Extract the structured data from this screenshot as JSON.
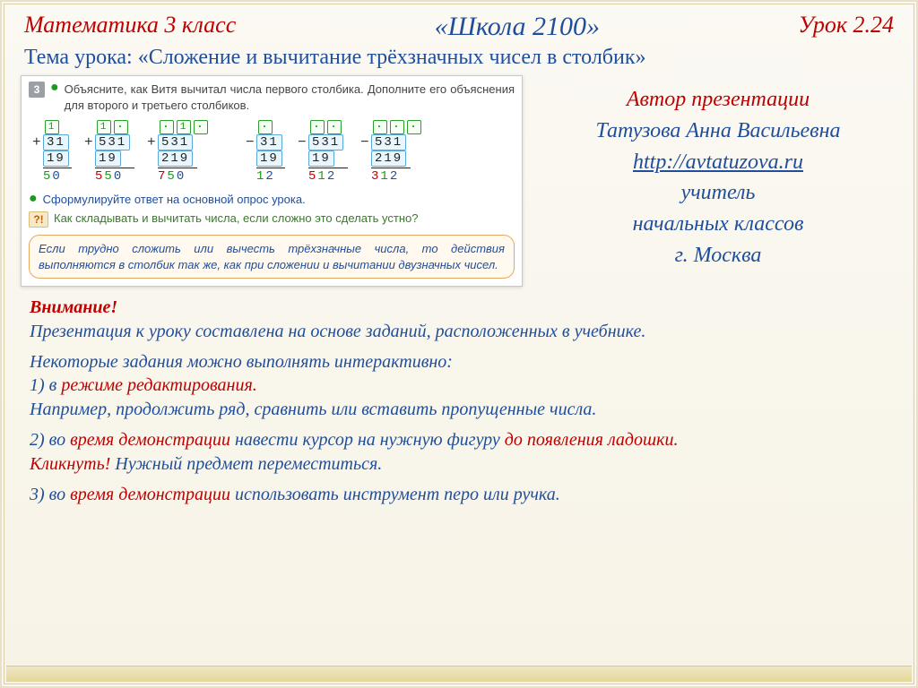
{
  "header": {
    "left": "Математика  3 класс",
    "center": "«Школа 2100»",
    "right": "Урок 2.24"
  },
  "topic": "Тема урока: «Сложение и вычитание трёхзначных чисел в столбик»",
  "textbook": {
    "task_num": "3",
    "task_text": "Объясните, как Витя вычитал числа первого столбика. Дополните его объяснения для второго и третьего столбиков.",
    "add": [
      {
        "carries": [
          "1"
        ],
        "a": "31",
        "b": "19",
        "res": [
          {
            "t": "5",
            "c": "d-g"
          },
          {
            "t": "0",
            "c": "d-b"
          }
        ]
      },
      {
        "carries": [
          "1",
          "·"
        ],
        "a": "531",
        "b": "19",
        "res": [
          {
            "t": "5",
            "c": "d-r"
          },
          {
            "t": "5",
            "c": "d-g"
          },
          {
            "t": "0",
            "c": "d-b"
          }
        ]
      },
      {
        "carries": [
          "·",
          "1",
          "·"
        ],
        "a": "531",
        "b": "219",
        "res": [
          {
            "t": "7",
            "c": "d-r"
          },
          {
            "t": "5",
            "c": "d-g"
          },
          {
            "t": "0",
            "c": "d-b"
          }
        ]
      }
    ],
    "sub": [
      {
        "carries": [
          "·"
        ],
        "a": "31",
        "b": "19",
        "res": [
          {
            "t": "1",
            "c": "d-g"
          },
          {
            "t": "2",
            "c": "d-b"
          }
        ]
      },
      {
        "carries": [
          "·",
          "·"
        ],
        "a": "531",
        "b": "19",
        "res": [
          {
            "t": "5",
            "c": "d-r"
          },
          {
            "t": "1",
            "c": "d-g"
          },
          {
            "t": "2",
            "c": "d-b"
          }
        ]
      },
      {
        "carries": [
          "·",
          "·",
          "·"
        ],
        "a": "531",
        "b": "219",
        "res": [
          {
            "t": "3",
            "c": "d-r"
          },
          {
            "t": "1",
            "c": "d-g"
          },
          {
            "t": "2",
            "c": "d-b"
          }
        ]
      }
    ],
    "sub_prompt": "Сформулируйте ответ на основной опрос урока.",
    "question": "Как складывать и вычитать числа, если сложно это сделать устно?",
    "rule": "Если трудно сложить или вычесть трёхзначные числа, то действия выполняются в столбик так же, как при сложении и вычитании двузначных чисел."
  },
  "author": {
    "title": "Автор презентации",
    "name": "Татузова Анна Васильевна",
    "url": "http://avtatuzova.ru",
    "role1": "учитель",
    "role2": "начальных классов",
    "city": "г. Москва"
  },
  "notice": {
    "attention": "Внимание!",
    "p1": "Презентация к уроку составлена на основе заданий, расположенных в учебнике.",
    "p2a": "Некоторые задания можно выполнять интерактивно:",
    "p2b_num": "1) в ",
    "p2b_red": "режиме редактирования.",
    "p2c": "Например, продолжить ряд, сравнить или вставить пропущенные числа.",
    "p3a_num": "2) во ",
    "p3a_red1": "время демонстрации ",
    "p3a_blue": "навести курсор на  нужную фигуру ",
    "p3a_red2": "до появления ладошки.",
    "p3b_red": "Кликнуть! ",
    "p3b_blue": "Нужный предмет переместиться.",
    "p4_num": "3) во ",
    "p4_red": "время демонстрации ",
    "p4_blue": "использовать инструмент перо или ручка."
  }
}
